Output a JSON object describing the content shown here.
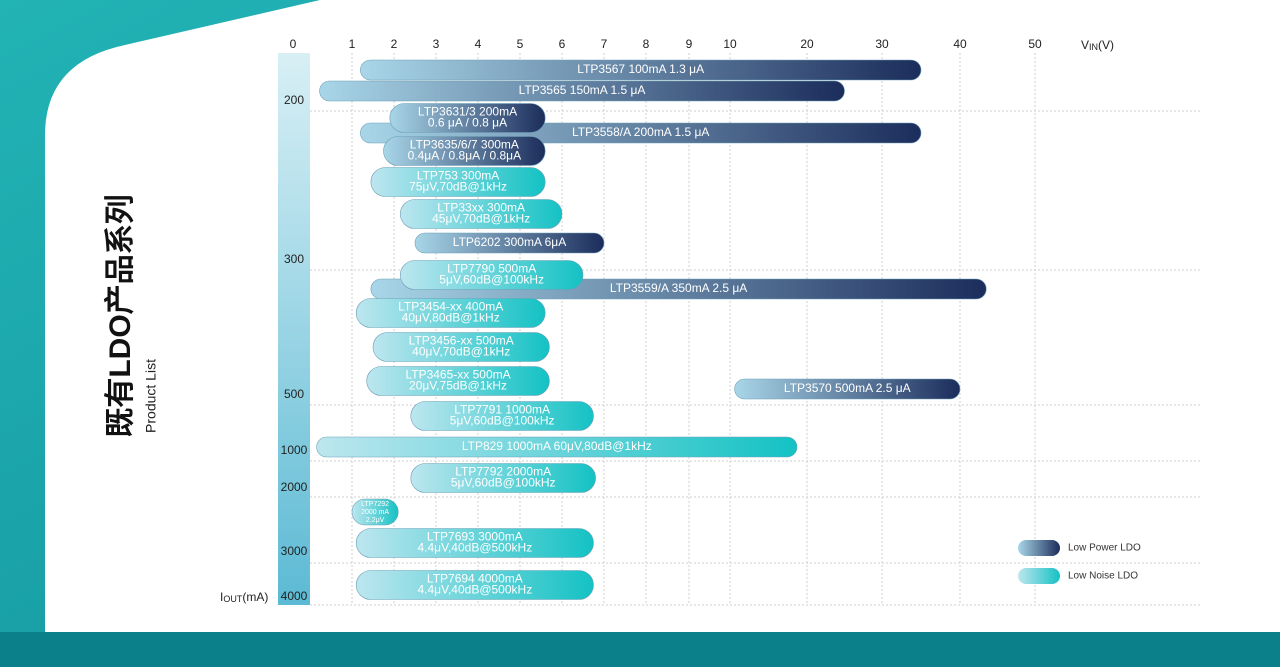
{
  "chart_data": {
    "type": "range-bar",
    "title": "既有LDO产品系列",
    "subtitle": "Product List",
    "x_label": {
      "main": "V",
      "sub": "IN",
      "unit": "(V)"
    },
    "y_label": {
      "main": "I",
      "sub": "OUT",
      "unit": "(mA)"
    },
    "xticks": [
      0,
      1,
      2,
      3,
      4,
      5,
      6,
      7,
      8,
      9,
      10,
      20,
      30,
      40,
      50
    ],
    "xlim": [
      0,
      50
    ],
    "yticks": [
      200,
      300,
      500,
      1000,
      2000,
      3000,
      4000
    ],
    "grid": true,
    "legend": "bottom-right",
    "series": [
      {
        "name": "Low Power LDO",
        "colors": [
          "#a9d6e8",
          "#1c2d5c"
        ]
      },
      {
        "name": "Low Noise LDO",
        "colors": [
          "#bde6ef",
          "#14c2c4"
        ]
      }
    ],
    "products": [
      {
        "lines": [
          "LTP3567 100mA 1.3 μA"
        ],
        "series": 0,
        "vin": [
          1.2,
          35
        ]
      },
      {
        "lines": [
          "LTP3565 150mA 1.5 μA"
        ],
        "series": 0,
        "vin": [
          0.45,
          25
        ]
      },
      {
        "lines": [
          "LTP3558/A 200mA 1.5 μA"
        ],
        "series": 0,
        "vin": [
          1.2,
          35
        ]
      },
      {
        "lines": [
          "LTP3631/3 200mA",
          "0.6 μA / 0.8 μA"
        ],
        "series": 0,
        "vin": [
          1.9,
          5.6
        ]
      },
      {
        "lines": [
          "LTP3635/6/7 300mA",
          "0.4μA / 0.8μA / 0.8μA"
        ],
        "series": 0,
        "vin": [
          1.75,
          5.6
        ]
      },
      {
        "lines": [
          "LTP753 300mA",
          "75μV,70dB@1kHz"
        ],
        "series": 1,
        "vin": [
          1.45,
          5.6
        ]
      },
      {
        "lines": [
          "LTP33xx 300mA",
          "45μV,70dB@1kHz"
        ],
        "series": 1,
        "vin": [
          2.15,
          6
        ]
      },
      {
        "lines": [
          "LTP6202 300mA 6μA"
        ],
        "series": 0,
        "vin": [
          2.5,
          7
        ]
      },
      {
        "lines": [
          "LTP3559/A 350mA 2.5 μA"
        ],
        "series": 0,
        "vin": [
          1.45,
          43.5
        ]
      },
      {
        "lines": [
          "LTP7790 500mA",
          "5μV,60dB@100kHz"
        ],
        "series": 1,
        "vin": [
          2.15,
          6.5
        ]
      },
      {
        "lines": [
          "LTP3454-xx 400mA",
          "40μV,80dB@1kHz"
        ],
        "series": 1,
        "vin": [
          1.1,
          5.6
        ]
      },
      {
        "lines": [
          "LTP3456-xx 500mA",
          "40μV,70dB@1kHz"
        ],
        "series": 1,
        "vin": [
          1.5,
          5.7
        ]
      },
      {
        "lines": [
          "LTP3465-xx 500mA",
          "20μV,75dB@1kHz"
        ],
        "series": 1,
        "vin": [
          1.35,
          5.7
        ]
      },
      {
        "lines": [
          "LTP3570 500mA 2.5 μA"
        ],
        "series": 0,
        "vin": [
          10.6,
          40
        ]
      },
      {
        "lines": [
          "LTP7791 1000mA",
          "5μV,60dB@100kHz"
        ],
        "series": 1,
        "vin": [
          2.4,
          6.75
        ]
      },
      {
        "lines": [
          "LTP829 1000mA 60μV,80dB@1kHz"
        ],
        "series": 1,
        "vin": [
          0.4,
          18.7
        ]
      },
      {
        "lines": [
          "LTP7792 2000mA",
          "5μV,60dB@100kHz"
        ],
        "series": 1,
        "vin": [
          2.4,
          6.8
        ]
      },
      {
        "lines": [
          "LTP7292",
          "2000 mA",
          "2.2μV"
        ],
        "series": 1,
        "vin": [
          1,
          2.1
        ]
      },
      {
        "lines": [
          "LTP7693 3000mA",
          "4.4μV,40dB@500kHz"
        ],
        "series": 1,
        "vin": [
          1.1,
          6.75
        ]
      },
      {
        "lines": [
          "LTP7694 4000mA",
          "4.4μV,40dB@500kHz"
        ],
        "series": 1,
        "vin": [
          1.1,
          6.75
        ]
      }
    ]
  }
}
